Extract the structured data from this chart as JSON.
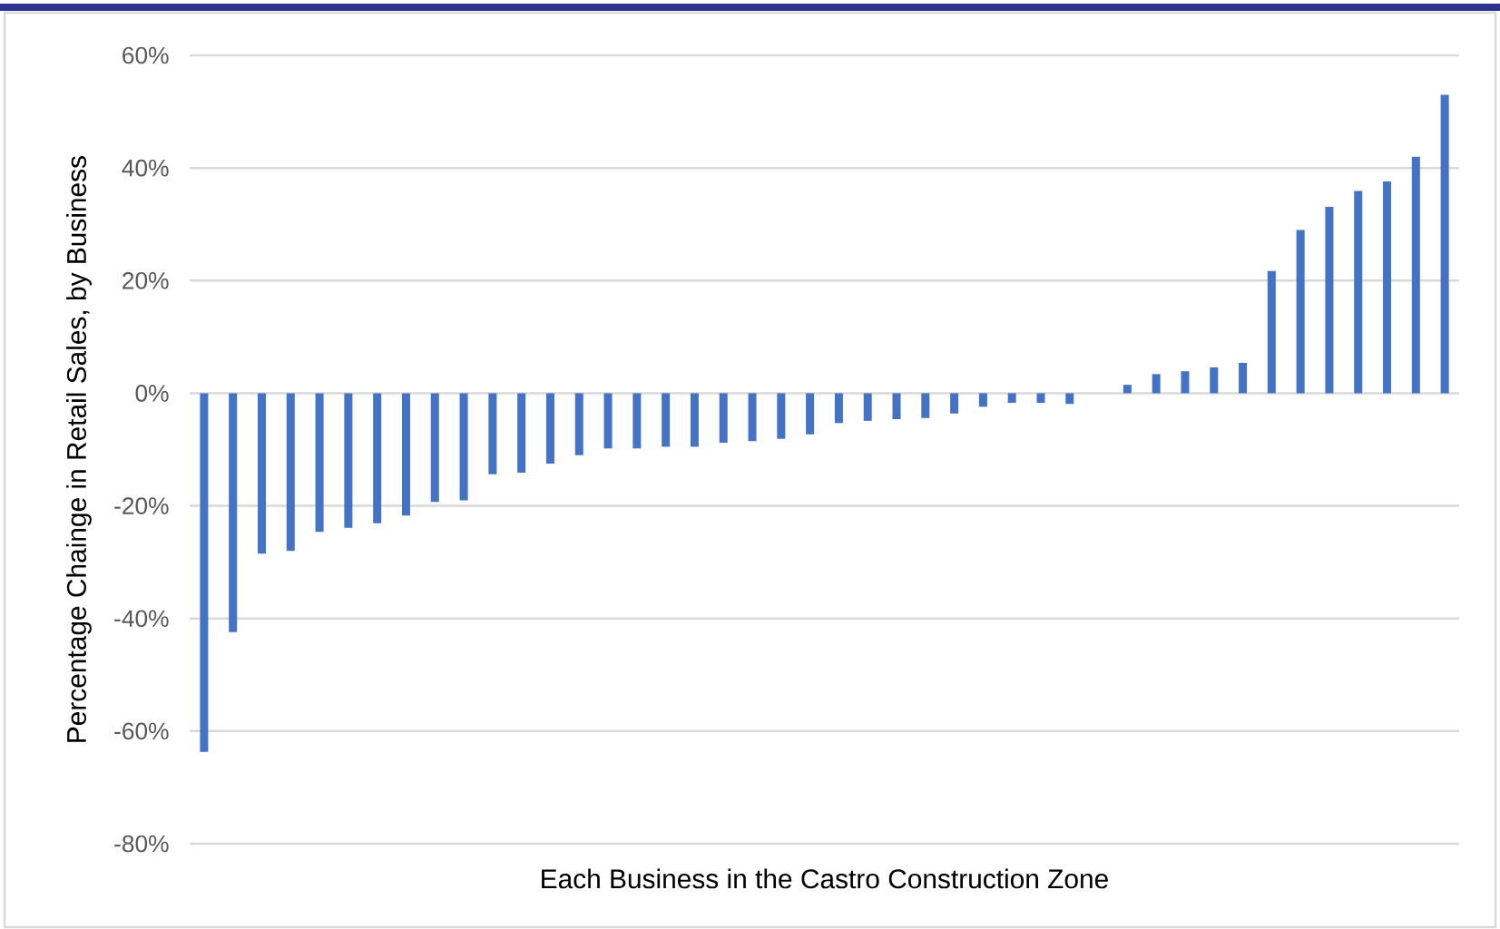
{
  "chart_data": {
    "type": "bar",
    "xlabel": "Each Business in the Castro Construction Zone",
    "ylabel": "Percentage Chainge in Retail Sales, by Business",
    "categories": [
      null,
      null,
      null,
      null,
      null,
      null,
      null,
      null,
      null,
      null,
      null,
      null,
      null,
      null,
      null,
      null,
      null,
      null,
      null,
      null,
      null,
      null,
      null,
      null,
      null,
      null,
      null,
      null,
      null,
      null,
      null,
      null,
      null,
      null,
      null,
      null,
      null,
      null,
      null,
      null,
      null,
      null,
      null,
      null
    ],
    "values": [
      -63.7,
      -42.4,
      -28.5,
      -28.0,
      -24.6,
      -23.9,
      -23.1,
      -21.7,
      -19.3,
      -19.0,
      -14.4,
      -14.1,
      -12.5,
      -11.0,
      -9.8,
      -9.8,
      -9.5,
      -9.5,
      -8.8,
      -8.5,
      -8.1,
      -7.3,
      -5.3,
      -4.9,
      -4.6,
      -4.4,
      -3.6,
      -2.4,
      -1.7,
      -1.7,
      -1.9,
      0,
      1.5,
      3.4,
      3.9,
      4.6,
      5.4,
      21.7,
      29.0,
      33.1,
      35.9,
      37.6,
      42.0,
      53.0
    ],
    "color": "#4472c4",
    "ylim": [
      -80,
      60
    ],
    "yticks": [
      {
        "value": -80,
        "label": "-80%"
      },
      {
        "value": -60,
        "label": "-60%"
      },
      {
        "value": -40,
        "label": "-40%"
      },
      {
        "value": -20,
        "label": "-20%"
      },
      {
        "value": 0,
        "label": "0%"
      },
      {
        "value": 20,
        "label": "20%"
      },
      {
        "value": 40,
        "label": "40%"
      },
      {
        "value": 60,
        "label": "60%"
      }
    ],
    "grid": "y"
  }
}
